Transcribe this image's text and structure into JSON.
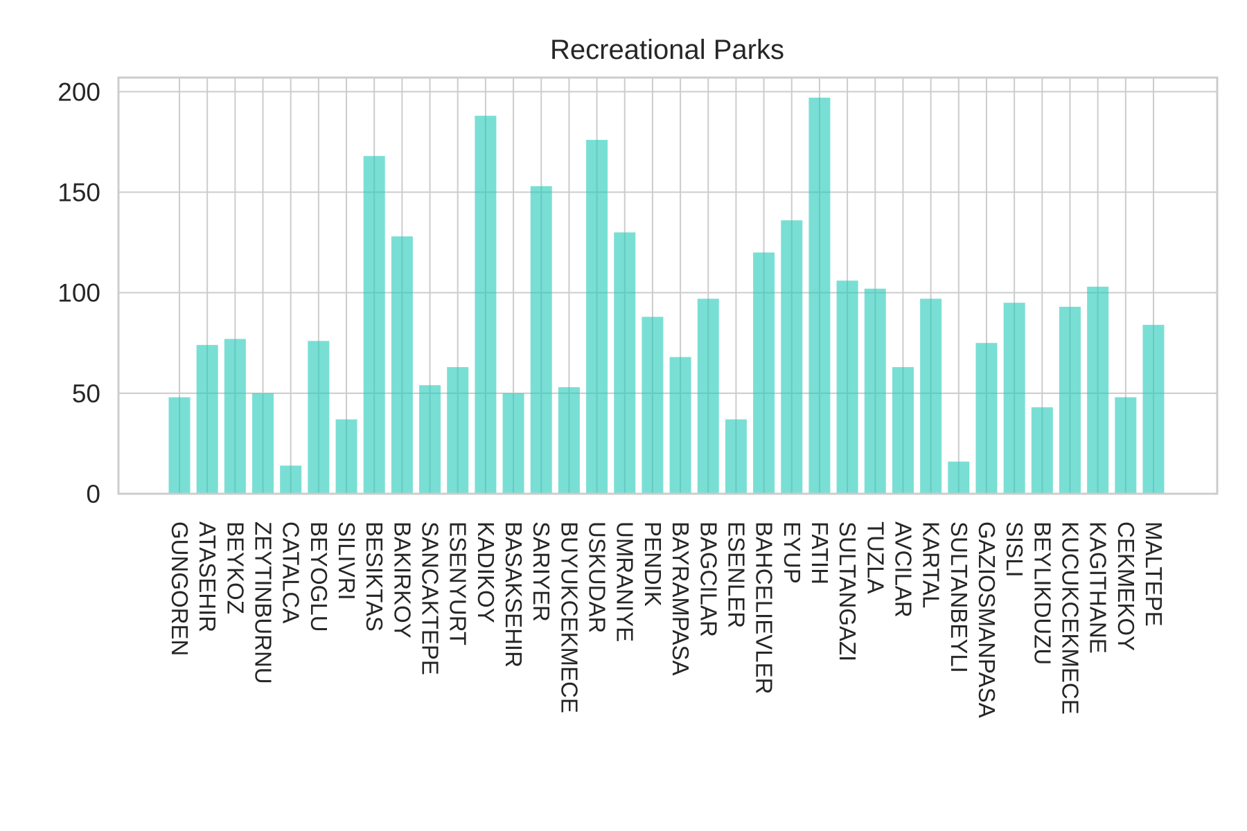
{
  "chart_data": {
    "type": "bar",
    "title": "Recreational Parks",
    "xlabel": "",
    "ylabel": "",
    "ylim": [
      0,
      207
    ],
    "yticks": [
      0,
      50,
      100,
      150,
      200
    ],
    "grid": true,
    "bar_color": "#20c9b8",
    "categories": [
      "GUNGOREN",
      "ATASEHIR",
      "BEYKOZ",
      "ZEYTINBURNU",
      "CATALCA",
      "BEYOGLU",
      "SILIVRI",
      "BESIKTAS",
      "BAKIRKOY",
      "SANCAKTEPE",
      "ESENYURT",
      "KADIKOY",
      "BASAKSEHIR",
      "SARIYER",
      "BUYUKCEKMECE",
      "USKUDAR",
      "UMRANIYE",
      "PENDIK",
      "BAYRAMPASA",
      "BAGCILAR",
      "ESENLER",
      "BAHCELIEVLER",
      "EYUP",
      "FATIH",
      "SULTANGAZI",
      "TUZLA",
      "AVCILAR",
      "KARTAL",
      "SULTANBEYLI",
      "GAZIOSMANPASA",
      "SISLI",
      "BEYLIKDUZU",
      "KUCUKCEKMECE",
      "KAGITHANE",
      "CEKMEKOY",
      "MALTEPE"
    ],
    "values": [
      48,
      74,
      77,
      50,
      14,
      76,
      37,
      168,
      128,
      54,
      63,
      188,
      50,
      153,
      53,
      176,
      130,
      88,
      68,
      97,
      37,
      120,
      136,
      197,
      106,
      102,
      63,
      97,
      16,
      75,
      95,
      43,
      93,
      103,
      48,
      84
    ]
  }
}
